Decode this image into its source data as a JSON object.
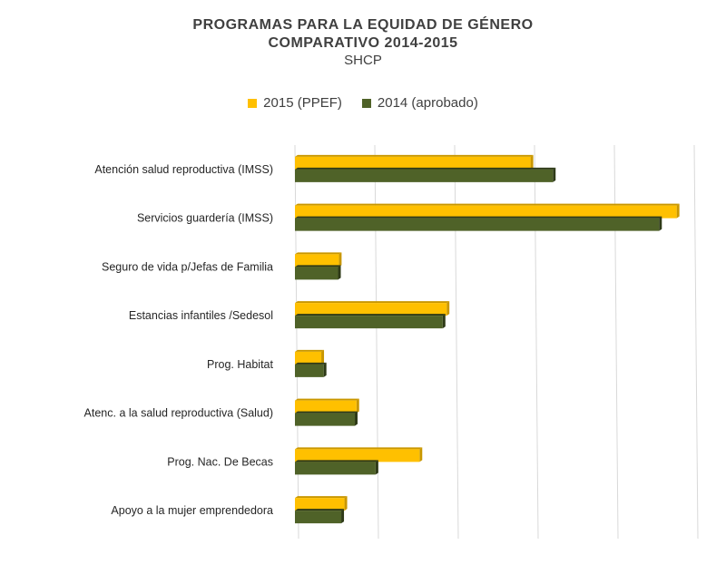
{
  "chart_data": {
    "type": "bar",
    "orientation": "horizontal",
    "title": "PROGRAMAS PARA LA EQUIDAD DE GÉNERO",
    "title_line2": "COMPARATIVO 2014-2015",
    "subtitle": "SHCP",
    "legend_position": "top",
    "grid": true,
    "xlim": [
      0,
      5000
    ],
    "categories": [
      "Atención salud reproductiva (IMSS)",
      "Servicios guardería (IMSS)",
      "Seguro de vida p/Jefas de Familia",
      "Estancias infantiles /Sedesol",
      "Prog. Habitat",
      "Atenc. a la salud reproductiva (Salud)",
      "Prog. Nac. De Becas",
      "Apoyo a la mujer emprendedora"
    ],
    "series": [
      {
        "name": "2015 (PPEF)",
        "color": "#FFC000",
        "values": [
          2950,
          4780,
          550,
          1900,
          330,
          770,
          1560,
          620
        ]
      },
      {
        "name": "2014 (aprobado)",
        "color": "#4F6228",
        "values": [
          3230,
          4560,
          540,
          1850,
          360,
          750,
          1010,
          580
        ]
      }
    ]
  }
}
